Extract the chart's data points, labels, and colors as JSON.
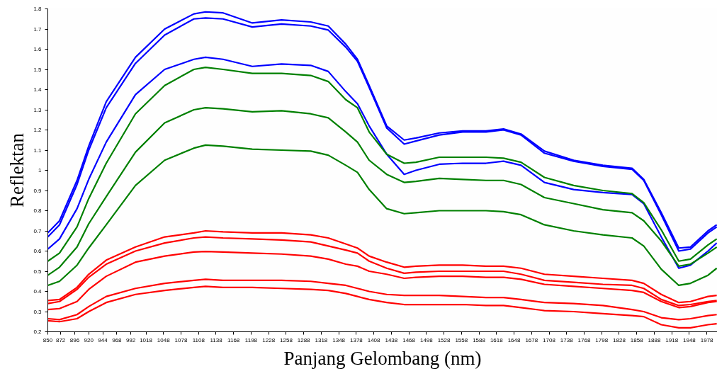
{
  "chart_data": {
    "type": "line",
    "xlabel": "Panjang Gelombang (nm)",
    "ylabel": "Reflektan",
    "x": [
      850,
      870,
      900,
      920,
      950,
      1000,
      1050,
      1100,
      1120,
      1150,
      1200,
      1250,
      1300,
      1330,
      1360,
      1380,
      1400,
      1430,
      1460,
      1480,
      1520,
      1560,
      1600,
      1630,
      1660,
      1700,
      1750,
      1800,
      1850,
      1870,
      1900,
      1930,
      1950,
      1980,
      1995
    ],
    "xlim": [
      850,
      1996
    ],
    "xticks": [
      850,
      872,
      896,
      920,
      944,
      968,
      992,
      1018,
      1048,
      1078,
      1108,
      1138,
      1168,
      1198,
      1228,
      1258,
      1288,
      1318,
      1348,
      1378,
      1408,
      1438,
      1468,
      1498,
      1528,
      1558,
      1588,
      1618,
      1648,
      1678,
      1708,
      1738,
      1768,
      1798,
      1828,
      1858,
      1888,
      1918,
      1948,
      1978
    ],
    "ylim": [
      0.2,
      1.8
    ],
    "yticks": [
      0.2,
      0.3,
      0.4,
      0.5,
      0.6,
      0.7,
      0.8,
      0.9,
      {
        "value": 1.0,
        "label": "1"
      },
      1.1,
      1.2,
      1.3,
      1.4,
      1.5,
      1.6,
      1.7,
      1.8
    ],
    "grid": false,
    "marker": "none",
    "line_style": "solid",
    "series": [
      {
        "color": "#0000ff",
        "values": [
          0.69,
          0.75,
          0.95,
          1.12,
          1.34,
          1.56,
          1.7,
          1.775,
          1.785,
          1.78,
          1.73,
          1.745,
          1.735,
          1.715,
          1.625,
          1.55,
          1.42,
          1.22,
          1.15,
          1.16,
          1.185,
          1.195,
          1.195,
          1.205,
          1.18,
          1.095,
          1.05,
          1.025,
          1.01,
          0.955,
          0.79,
          0.615,
          0.62,
          0.7,
          0.73
        ]
      },
      {
        "color": "#0000ff",
        "values": [
          0.67,
          0.73,
          0.93,
          1.1,
          1.31,
          1.53,
          1.67,
          1.75,
          1.755,
          1.75,
          1.71,
          1.725,
          1.715,
          1.695,
          1.61,
          1.54,
          1.41,
          1.21,
          1.13,
          1.145,
          1.175,
          1.19,
          1.19,
          1.2,
          1.175,
          1.085,
          1.045,
          1.02,
          1.005,
          0.95,
          0.78,
          0.6,
          0.61,
          0.69,
          0.72
        ]
      },
      {
        "color": "#0000ff",
        "values": [
          0.61,
          0.66,
          0.81,
          0.955,
          1.14,
          1.375,
          1.5,
          1.55,
          1.56,
          1.55,
          1.515,
          1.527,
          1.52,
          1.49,
          1.39,
          1.33,
          1.22,
          1.08,
          0.98,
          1.0,
          1.03,
          1.035,
          1.035,
          1.045,
          1.025,
          0.94,
          0.905,
          0.89,
          0.88,
          0.835,
          0.67,
          0.515,
          0.53,
          0.6,
          0.64
        ]
      },
      {
        "color": "#008000",
        "values": [
          0.55,
          0.59,
          0.72,
          0.86,
          1.035,
          1.28,
          1.42,
          1.5,
          1.51,
          1.5,
          1.48,
          1.48,
          1.47,
          1.44,
          1.35,
          1.31,
          1.19,
          1.08,
          1.035,
          1.04,
          1.065,
          1.065,
          1.065,
          1.06,
          1.04,
          0.965,
          0.925,
          0.9,
          0.885,
          0.84,
          0.705,
          0.55,
          0.56,
          0.63,
          0.66
        ]
      },
      {
        "color": "#008000",
        "values": [
          0.48,
          0.52,
          0.62,
          0.735,
          0.87,
          1.09,
          1.235,
          1.3,
          1.31,
          1.305,
          1.29,
          1.295,
          1.28,
          1.26,
          1.19,
          1.14,
          1.05,
          0.98,
          0.94,
          0.945,
          0.96,
          0.955,
          0.95,
          0.95,
          0.93,
          0.865,
          0.835,
          0.805,
          0.79,
          0.75,
          0.65,
          0.525,
          0.535,
          0.59,
          0.62
        ]
      },
      {
        "color": "#008000",
        "values": [
          0.43,
          0.45,
          0.53,
          0.615,
          0.73,
          0.925,
          1.05,
          1.11,
          1.125,
          1.12,
          1.105,
          1.1,
          1.095,
          1.075,
          1.025,
          0.99,
          0.905,
          0.81,
          0.785,
          0.79,
          0.8,
          0.8,
          0.8,
          0.795,
          0.78,
          0.73,
          0.7,
          0.68,
          0.665,
          0.625,
          0.51,
          0.43,
          0.44,
          0.48,
          0.515
        ]
      },
      {
        "color": "#ff0000",
        "values": [
          0.355,
          0.36,
          0.42,
          0.485,
          0.555,
          0.62,
          0.67,
          0.69,
          0.7,
          0.695,
          0.69,
          0.69,
          0.68,
          0.665,
          0.635,
          0.615,
          0.575,
          0.545,
          0.52,
          0.525,
          0.53,
          0.53,
          0.525,
          0.525,
          0.515,
          0.485,
          0.475,
          0.465,
          0.455,
          0.44,
          0.385,
          0.345,
          0.35,
          0.375,
          0.38
        ]
      },
      {
        "color": "#ff0000",
        "values": [
          0.34,
          0.35,
          0.41,
          0.47,
          0.535,
          0.6,
          0.64,
          0.665,
          0.67,
          0.665,
          0.66,
          0.655,
          0.645,
          0.625,
          0.605,
          0.59,
          0.55,
          0.515,
          0.49,
          0.495,
          0.5,
          0.5,
          0.5,
          0.5,
          0.485,
          0.455,
          0.445,
          0.435,
          0.43,
          0.415,
          0.36,
          0.33,
          0.335,
          0.35,
          0.355
        ]
      },
      {
        "color": "#ff0000",
        "values": [
          0.31,
          0.315,
          0.35,
          0.41,
          0.475,
          0.545,
          0.575,
          0.595,
          0.598,
          0.595,
          0.59,
          0.585,
          0.575,
          0.56,
          0.535,
          0.525,
          0.5,
          0.485,
          0.465,
          0.47,
          0.475,
          0.475,
          0.47,
          0.47,
          0.46,
          0.435,
          0.425,
          0.415,
          0.405,
          0.395,
          0.35,
          0.32,
          0.325,
          0.345,
          0.35
        ]
      },
      {
        "color": "#ff0000",
        "values": [
          0.265,
          0.26,
          0.285,
          0.325,
          0.375,
          0.415,
          0.44,
          0.455,
          0.46,
          0.455,
          0.455,
          0.455,
          0.45,
          0.44,
          0.43,
          0.415,
          0.4,
          0.385,
          0.38,
          0.38,
          0.38,
          0.375,
          0.37,
          0.37,
          0.36,
          0.345,
          0.34,
          0.33,
          0.31,
          0.3,
          0.27,
          0.26,
          0.265,
          0.28,
          0.285
        ]
      },
      {
        "color": "#ff0000",
        "values": [
          0.255,
          0.25,
          0.265,
          0.3,
          0.345,
          0.385,
          0.405,
          0.42,
          0.425,
          0.42,
          0.42,
          0.415,
          0.41,
          0.405,
          0.39,
          0.375,
          0.36,
          0.345,
          0.335,
          0.335,
          0.335,
          0.335,
          0.33,
          0.33,
          0.32,
          0.305,
          0.3,
          0.29,
          0.28,
          0.275,
          0.235,
          0.22,
          0.22,
          0.235,
          0.24
        ]
      }
    ]
  }
}
